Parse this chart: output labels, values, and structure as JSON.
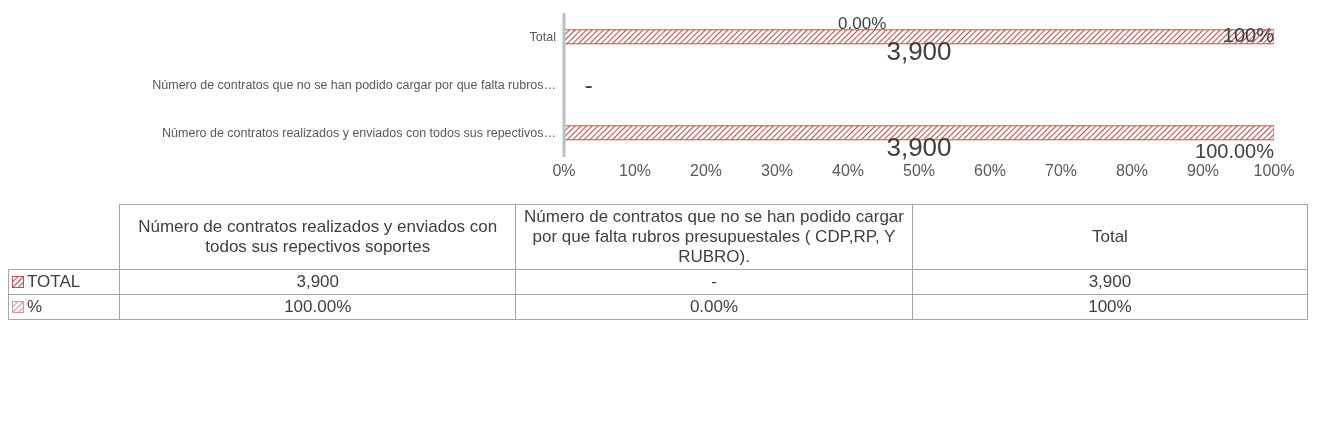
{
  "chart_data": {
    "type": "bar",
    "orientation": "horizontal",
    "stacked": true,
    "categories": [
      "Total",
      "Número de contratos que no se han podido cargar por que falta rubros…",
      "Número de contratos realizados y enviados con todos sus repectivos…"
    ],
    "series": [
      {
        "name": "TOTAL",
        "color": "#c0504d",
        "values": [
          100,
          0,
          100
        ]
      },
      {
        "name": "%",
        "color": "#d99694",
        "values": [
          0,
          0,
          0
        ]
      }
    ],
    "xlim": [
      0,
      100
    ],
    "xticks": [
      {
        "value": 0,
        "label": "0%"
      },
      {
        "value": 10,
        "label": "10%"
      },
      {
        "value": 20,
        "label": "20%"
      },
      {
        "value": 30,
        "label": "30%"
      },
      {
        "value": 40,
        "label": "40%"
      },
      {
        "value": 50,
        "label": "50%"
      },
      {
        "value": 60,
        "label": "60%"
      },
      {
        "value": 70,
        "label": "70%"
      },
      {
        "value": 80,
        "label": "80%"
      },
      {
        "value": 90,
        "label": "90%"
      },
      {
        "value": 100,
        "label": "100%"
      }
    ],
    "annotations": [
      "Número de contratos realizados y enviados con todos sus repectivos soportes",
      "Número de contratos que no se han podido cargar por que falta rubros presupuestales ( CDP,RP,  Y RUBRO).",
      "Total",
      "3,900",
      "-",
      "3,900",
      "100.00%",
      "0.00%",
      "100%",
      "0.00%",
      "3,900",
      "100%",
      "-",
      "3,900",
      "100.00%"
    ],
    "grid": false,
    "legend": "bottom"
  }
}
